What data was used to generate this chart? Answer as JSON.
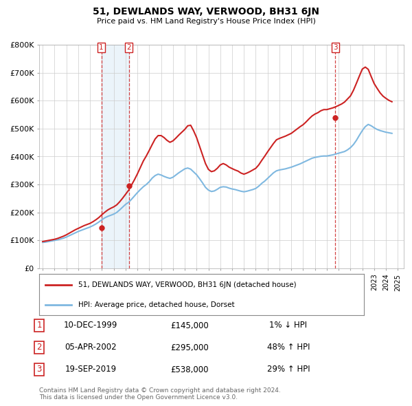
{
  "title": "51, DEWLANDS WAY, VERWOOD, BH31 6JN",
  "subtitle": "Price paid vs. HM Land Registry's House Price Index (HPI)",
  "hpi_color": "#7fb8e0",
  "price_color": "#cc2222",
  "background_color": "#ffffff",
  "grid_color": "#cccccc",
  "ylim": [
    0,
    800000
  ],
  "yticks": [
    0,
    100000,
    200000,
    300000,
    400000,
    500000,
    600000,
    700000,
    800000
  ],
  "ytick_labels": [
    "£0",
    "£100K",
    "£200K",
    "£300K",
    "£400K",
    "£500K",
    "£600K",
    "£700K",
    "£800K"
  ],
  "xlim_start": 1994.7,
  "xlim_end": 2025.5,
  "purchases": [
    {
      "num": 1,
      "date_str": "10-DEC-1999",
      "year": 1999.95,
      "price": 145000,
      "hpi_rel": "1% ↓ HPI"
    },
    {
      "num": 2,
      "date_str": "05-APR-2002",
      "year": 2002.27,
      "price": 295000,
      "hpi_rel": "48% ↑ HPI"
    },
    {
      "num": 3,
      "date_str": "19-SEP-2019",
      "year": 2019.72,
      "price": 538000,
      "hpi_rel": "29% ↑ HPI"
    }
  ],
  "legend_label_price": "51, DEWLANDS WAY, VERWOOD, BH31 6JN (detached house)",
  "legend_label_hpi": "HPI: Average price, detached house, Dorset",
  "footer": "Contains HM Land Registry data © Crown copyright and database right 2024.\nThis data is licensed under the Open Government Licence v3.0.",
  "hpi_data_x": [
    1995.0,
    1995.25,
    1995.5,
    1995.75,
    1996.0,
    1996.25,
    1996.5,
    1996.75,
    1997.0,
    1997.25,
    1997.5,
    1997.75,
    1998.0,
    1998.25,
    1998.5,
    1998.75,
    1999.0,
    1999.25,
    1999.5,
    1999.75,
    2000.0,
    2000.25,
    2000.5,
    2000.75,
    2001.0,
    2001.25,
    2001.5,
    2001.75,
    2002.0,
    2002.25,
    2002.5,
    2002.75,
    2003.0,
    2003.25,
    2003.5,
    2003.75,
    2004.0,
    2004.25,
    2004.5,
    2004.75,
    2005.0,
    2005.25,
    2005.5,
    2005.75,
    2006.0,
    2006.25,
    2006.5,
    2006.75,
    2007.0,
    2007.25,
    2007.5,
    2007.75,
    2008.0,
    2008.25,
    2008.5,
    2008.75,
    2009.0,
    2009.25,
    2009.5,
    2009.75,
    2010.0,
    2010.25,
    2010.5,
    2010.75,
    2011.0,
    2011.25,
    2011.5,
    2011.75,
    2012.0,
    2012.25,
    2012.5,
    2012.75,
    2013.0,
    2013.25,
    2013.5,
    2013.75,
    2014.0,
    2014.25,
    2014.5,
    2014.75,
    2015.0,
    2015.25,
    2015.5,
    2015.75,
    2016.0,
    2016.25,
    2016.5,
    2016.75,
    2017.0,
    2017.25,
    2017.5,
    2017.75,
    2018.0,
    2018.25,
    2018.5,
    2018.75,
    2019.0,
    2019.25,
    2019.5,
    2019.75,
    2020.0,
    2020.25,
    2020.5,
    2020.75,
    2021.0,
    2021.25,
    2021.5,
    2021.75,
    2022.0,
    2022.25,
    2022.5,
    2022.75,
    2023.0,
    2023.25,
    2023.5,
    2023.75,
    2024.0,
    2024.25,
    2024.5
  ],
  "hpi_data_y": [
    93000,
    94000,
    96000,
    98000,
    100000,
    102000,
    105000,
    108000,
    112000,
    117000,
    122000,
    127000,
    132000,
    136000,
    140000,
    144000,
    148000,
    153000,
    159000,
    166000,
    174000,
    181000,
    186000,
    190000,
    194000,
    200000,
    209000,
    219000,
    229000,
    236000,
    247000,
    259000,
    271000,
    282000,
    292000,
    300000,
    310000,
    323000,
    332000,
    337000,
    334000,
    329000,
    325000,
    322000,
    326000,
    334000,
    342000,
    349000,
    356000,
    359000,
    355000,
    345000,
    335000,
    321000,
    306000,
    290000,
    280000,
    275000,
    277000,
    283000,
    290000,
    292000,
    291000,
    287000,
    284000,
    282000,
    279000,
    276000,
    274000,
    276000,
    279000,
    282000,
    286000,
    294000,
    304000,
    312000,
    322000,
    332000,
    342000,
    349000,
    352000,
    354000,
    356000,
    359000,
    362000,
    366000,
    370000,
    374000,
    379000,
    384000,
    389000,
    394000,
    397000,
    399000,
    401000,
    402000,
    402000,
    404000,
    406000,
    409000,
    412000,
    415000,
    418000,
    424000,
    432000,
    443000,
    458000,
    476000,
    493000,
    507000,
    515000,
    510000,
    503000,
    497000,
    493000,
    490000,
    487000,
    485000,
    483000
  ],
  "price_data_x": [
    1995.0,
    1995.25,
    1995.5,
    1995.75,
    1996.0,
    1996.25,
    1996.5,
    1996.75,
    1997.0,
    1997.25,
    1997.5,
    1997.75,
    1998.0,
    1998.25,
    1998.5,
    1998.75,
    1999.0,
    1999.25,
    1999.5,
    1999.75,
    2000.0,
    2000.25,
    2000.5,
    2000.75,
    2001.0,
    2001.25,
    2001.5,
    2001.75,
    2002.0,
    2002.25,
    2002.5,
    2002.75,
    2003.0,
    2003.25,
    2003.5,
    2003.75,
    2004.0,
    2004.25,
    2004.5,
    2004.75,
    2005.0,
    2005.25,
    2005.5,
    2005.75,
    2006.0,
    2006.25,
    2006.5,
    2006.75,
    2007.0,
    2007.25,
    2007.5,
    2007.75,
    2008.0,
    2008.25,
    2008.5,
    2008.75,
    2009.0,
    2009.25,
    2009.5,
    2009.75,
    2010.0,
    2010.25,
    2010.5,
    2010.75,
    2011.0,
    2011.25,
    2011.5,
    2011.75,
    2012.0,
    2012.25,
    2012.5,
    2012.75,
    2013.0,
    2013.25,
    2013.5,
    2013.75,
    2014.0,
    2014.25,
    2014.5,
    2014.75,
    2015.0,
    2015.25,
    2015.5,
    2015.75,
    2016.0,
    2016.25,
    2016.5,
    2016.75,
    2017.0,
    2017.25,
    2017.5,
    2017.75,
    2018.0,
    2018.25,
    2018.5,
    2018.75,
    2019.0,
    2019.25,
    2019.5,
    2019.75,
    2020.0,
    2020.25,
    2020.5,
    2020.75,
    2021.0,
    2021.25,
    2021.5,
    2021.75,
    2022.0,
    2022.25,
    2022.5,
    2022.75,
    2023.0,
    2023.25,
    2023.5,
    2023.75,
    2024.0,
    2024.25,
    2024.5
  ],
  "price_data_y": [
    96000,
    98000,
    100000,
    102000,
    104000,
    107000,
    111000,
    115000,
    120000,
    126000,
    132000,
    138000,
    143000,
    148000,
    153000,
    157000,
    161000,
    167000,
    174000,
    182000,
    192000,
    201000,
    209000,
    215000,
    220000,
    227000,
    238000,
    251000,
    265000,
    279000,
    298000,
    317000,
    338000,
    361000,
    384000,
    402000,
    422000,
    443000,
    463000,
    475000,
    475000,
    468000,
    458000,
    451000,
    456000,
    466000,
    477000,
    487000,
    497000,
    510000,
    512000,
    492000,
    468000,
    437000,
    406000,
    375000,
    354000,
    346000,
    349000,
    358000,
    370000,
    375000,
    370000,
    362000,
    357000,
    352000,
    348000,
    341000,
    337000,
    341000,
    346000,
    352000,
    358000,
    370000,
    386000,
    401000,
    417000,
    432000,
    447000,
    460000,
    465000,
    469000,
    473000,
    478000,
    483000,
    491000,
    499000,
    507000,
    514000,
    524000,
    535000,
    545000,
    552000,
    557000,
    564000,
    568000,
    568000,
    571000,
    574000,
    578000,
    583000,
    588000,
    595000,
    606000,
    617000,
    637000,
    662000,
    688000,
    713000,
    720000,
    712000,
    686000,
    661000,
    644000,
    628000,
    616000,
    608000,
    601000,
    596000
  ]
}
